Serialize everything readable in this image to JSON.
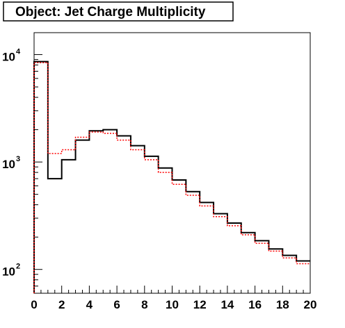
{
  "chart_data": {
    "type": "line",
    "title": "Object: Jet Charge Multiplicity",
    "xlabel": "",
    "ylabel": "",
    "xlim": [
      0,
      20
    ],
    "ylim": [
      60,
      16000
    ],
    "yscale": "log",
    "grid": false,
    "legend": "none",
    "x_bin_edges": [
      0,
      1,
      2,
      3,
      4,
      5,
      6,
      7,
      8,
      9,
      10,
      11,
      12,
      13,
      14,
      15,
      16,
      17,
      18,
      19,
      20
    ],
    "x_tick_labels": [
      "0",
      "2",
      "4",
      "6",
      "8",
      "10",
      "12",
      "14",
      "16",
      "18",
      "20"
    ],
    "y_tick_labels": [
      {
        "value": 100,
        "base": "10",
        "exp": "2"
      },
      {
        "value": 1000,
        "base": "10",
        "exp": "3"
      },
      {
        "value": 10000,
        "base": "10",
        "exp": "4"
      }
    ],
    "series": [
      {
        "color": "#000000",
        "style": "solid",
        "values": [
          8600,
          700,
          1050,
          1600,
          1950,
          2000,
          1750,
          1420,
          1130,
          880,
          680,
          530,
          420,
          330,
          270,
          220,
          185,
          155,
          135,
          120
        ]
      },
      {
        "color": "#ff0000",
        "style": "dotted",
        "values": [
          8400,
          1200,
          1300,
          1700,
          1900,
          1850,
          1600,
          1300,
          1050,
          800,
          620,
          490,
          390,
          310,
          255,
          210,
          175,
          148,
          128,
          113
        ]
      }
    ]
  }
}
